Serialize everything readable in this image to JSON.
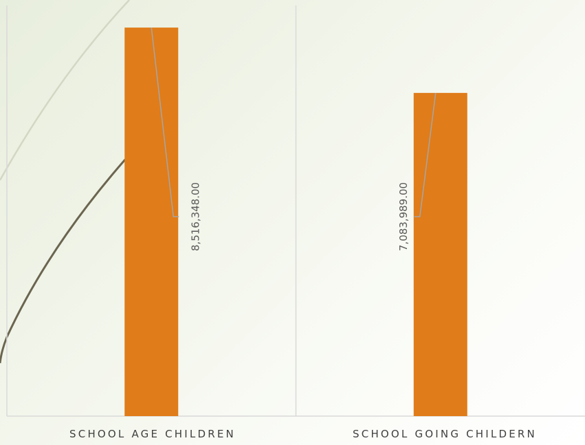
{
  "chart_data": {
    "type": "bar",
    "categories": [
      "SCHOOL AGE CHILDREN",
      "SCHOOL GOING CHILDERN"
    ],
    "values": [
      8516348,
      7083989
    ],
    "data_labels": [
      "8,516,348.00",
      "7,083,989.00"
    ],
    "ylim": [
      0,
      9000000
    ],
    "title": "",
    "xlabel": "",
    "ylabel": "",
    "bar_color": "#e07c1a",
    "grid": false,
    "legend": "none"
  },
  "theme": {
    "decor_curve_color": "#6b6550",
    "decor_line_color": "#d3d8c4",
    "axis_color": "#d9d9d9",
    "leader_line_color": "#a6a6a6",
    "label_color": "#3f3f3f",
    "data_label_color": "#595959"
  }
}
